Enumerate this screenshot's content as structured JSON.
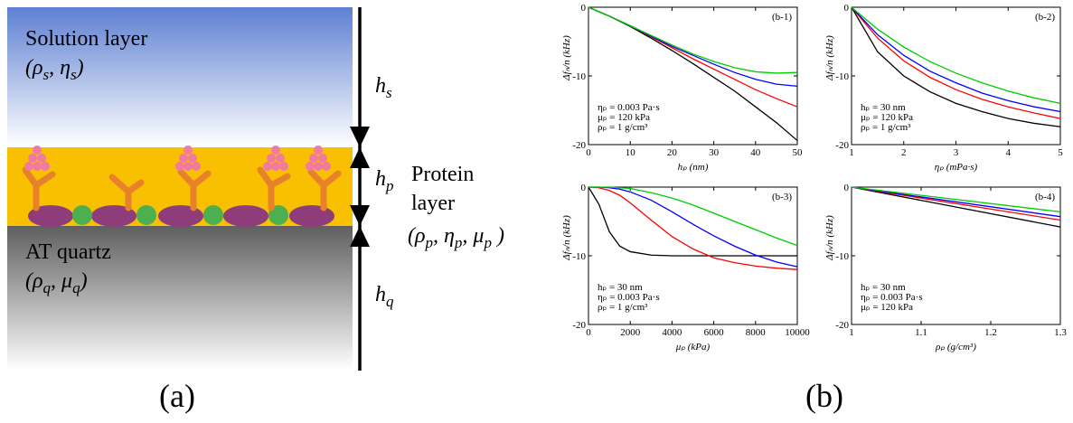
{
  "diagram": {
    "solution_label": "Solution layer",
    "solution_params": [
      "(ρ",
      "s",
      ", η",
      "s",
      ")"
    ],
    "hs": [
      "h",
      "s"
    ],
    "hp": [
      "h",
      "p"
    ],
    "hq": [
      "h",
      "q"
    ],
    "protein_label": [
      "Protein",
      "layer"
    ],
    "protein_params": [
      "(ρ",
      "p",
      ", η",
      "p",
      ", μ",
      "p",
      " )"
    ],
    "quartz_label": "AT quartz",
    "quartz_params": [
      "(ρ",
      "q",
      ", μ",
      "q",
      ")"
    ]
  },
  "panel_labels": [
    "(a)",
    "(b)"
  ],
  "chart_data": [
    {
      "type": "line",
      "tag": "(b-1)",
      "xlabel": "hₚ (nm)",
      "ylabel": "Δfₙ/n (kHz)",
      "annotations": [
        "ηₚ = 0.003 Pa·s",
        "μₚ = 120 kPa",
        "ρₚ = 1 g/cm³"
      ],
      "x": [
        0,
        5,
        10,
        15,
        20,
        25,
        30,
        35,
        40,
        45,
        50
      ],
      "xlim": [
        0,
        50
      ],
      "xticks": [
        0,
        10,
        20,
        30,
        40,
        50
      ],
      "ylim": [
        -20,
        0
      ],
      "yticks": [
        -20,
        -10,
        0
      ],
      "series": [
        {
          "color": "#000000",
          "values": [
            0,
            -1.3,
            -2.8,
            -4.5,
            -6.3,
            -8.2,
            -10.2,
            -12.2,
            -14.5,
            -16.8,
            -19.4
          ]
        },
        {
          "color": "#ff0000",
          "values": [
            0,
            -1.3,
            -2.7,
            -4.3,
            -5.9,
            -7.5,
            -9.0,
            -10.5,
            -12.0,
            -13.3,
            -14.5
          ]
        },
        {
          "color": "#0000ff",
          "values": [
            0,
            -1.3,
            -2.7,
            -4.2,
            -5.7,
            -7.0,
            -8.3,
            -9.5,
            -10.5,
            -11.2,
            -11.5
          ]
        },
        {
          "color": "#00cc00",
          "values": [
            0,
            -1.3,
            -2.7,
            -4.1,
            -5.5,
            -6.8,
            -7.9,
            -8.8,
            -9.4,
            -9.6,
            -9.5
          ]
        }
      ]
    },
    {
      "type": "line",
      "tag": "(b-2)",
      "xlabel": "ηₚ (mPa·s)",
      "ylabel": "Δfₙ/n (kHz)",
      "annotations": [
        "hₚ = 30 nm",
        "μₚ = 120 kPa",
        "ρₚ = 1 g/cm³"
      ],
      "x": [
        1,
        1.5,
        2,
        2.5,
        3,
        3.5,
        4,
        4.5,
        5
      ],
      "xlim": [
        1,
        5
      ],
      "xticks": [
        1,
        2,
        3,
        4,
        5
      ],
      "ylim": [
        -20,
        0
      ],
      "yticks": [
        -20,
        -10,
        0
      ],
      "series": [
        {
          "color": "#000000",
          "values": [
            0,
            -6.5,
            -10,
            -12.3,
            -14,
            -15.2,
            -16.2,
            -16.9,
            -17.4
          ]
        },
        {
          "color": "#ff0000",
          "values": [
            0,
            -4.5,
            -7.8,
            -10.2,
            -12,
            -13.4,
            -14.5,
            -15.4,
            -16.2
          ]
        },
        {
          "color": "#0000ff",
          "values": [
            0,
            -4,
            -7,
            -9.3,
            -11,
            -12.5,
            -13.6,
            -14.5,
            -15.2
          ]
        },
        {
          "color": "#00cc00",
          "values": [
            0,
            -3.2,
            -5.8,
            -7.9,
            -9.6,
            -11,
            -12.2,
            -13.2,
            -14
          ]
        }
      ]
    },
    {
      "type": "line",
      "tag": "(b-3)",
      "xlabel": "μₚ (kPa)",
      "ylabel": "Δfₙ/n (kHz)",
      "annotations": [
        "hₚ = 30 nm",
        "ηₚ = 0.003 Pa·s",
        "ρₚ = 1 g/cm³"
      ],
      "x": [
        0,
        500,
        1000,
        1500,
        2000,
        3000,
        4000,
        5000,
        6000,
        7000,
        8000,
        9000,
        10000
      ],
      "xlim": [
        0,
        10000
      ],
      "xticks": [
        0,
        2000,
        4000,
        6000,
        8000,
        10000
      ],
      "ylim": [
        -20,
        0
      ],
      "yticks": [
        -20,
        -10,
        0
      ],
      "series": [
        {
          "color": "#000000",
          "values": [
            0,
            -2.5,
            -6.5,
            -8.6,
            -9.4,
            -9.9,
            -10,
            -10,
            -10,
            -10,
            -10,
            -10,
            -10
          ]
        },
        {
          "color": "#ff0000",
          "values": [
            0,
            -0.1,
            -0.5,
            -1.2,
            -2.3,
            -4.8,
            -7.2,
            -9,
            -10.3,
            -11,
            -11.5,
            -11.8,
            -12
          ]
        },
        {
          "color": "#0000ff",
          "values": [
            0,
            0,
            -0.1,
            -0.3,
            -0.7,
            -1.9,
            -3.6,
            -5.4,
            -7.1,
            -8.6,
            -9.9,
            -10.9,
            -11.6
          ]
        },
        {
          "color": "#00cc00",
          "values": [
            0,
            0,
            0,
            -0.1,
            -0.2,
            -0.8,
            -1.6,
            -2.6,
            -3.8,
            -5,
            -6.2,
            -7.4,
            -8.5
          ]
        }
      ]
    },
    {
      "type": "line",
      "tag": "(b-4)",
      "xlabel": "ρₚ (g/cm³)",
      "ylabel": "Δfₙ/n (kHz)",
      "annotations": [
        "hₚ = 30 nm",
        "ηₚ = 0.003 Pa·s",
        "μₚ = 120 kPa"
      ],
      "x": [
        1,
        1.3
      ],
      "xlim": [
        1,
        1.3
      ],
      "xticks": [
        1,
        1.1,
        1.2,
        1.3
      ],
      "ylim": [
        -20,
        0
      ],
      "yticks": [
        -20,
        -10,
        0
      ],
      "series": [
        {
          "color": "#000000",
          "values": [
            0,
            -5.8
          ]
        },
        {
          "color": "#ff0000",
          "values": [
            0,
            -4.8
          ]
        },
        {
          "color": "#0000ff",
          "values": [
            0,
            -4.3
          ]
        },
        {
          "color": "#00cc00",
          "values": [
            0,
            -3.6
          ]
        }
      ]
    }
  ]
}
